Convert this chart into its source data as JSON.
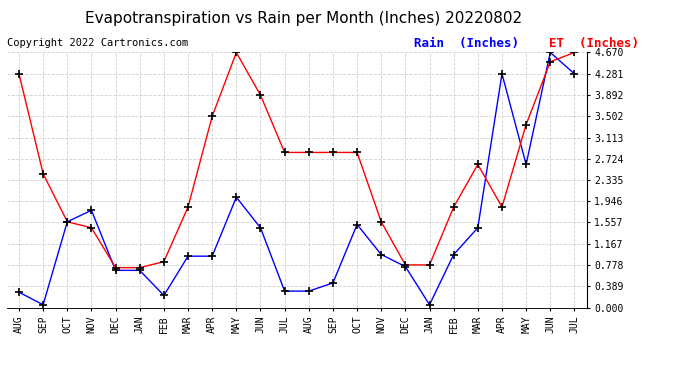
{
  "title": "Evapotranspiration vs Rain per Month (Inches) 20220802",
  "copyright": "Copyright 2022 Cartronics.com",
  "legend_rain": "Rain  (Inches)",
  "legend_et": "ET  (Inches)",
  "months": [
    "AUG",
    "SEP",
    "OCT",
    "NOV",
    "DEC",
    "JAN",
    "FEB",
    "MAR",
    "APR",
    "MAY",
    "JUN",
    "JUL",
    "AUG",
    "SEP",
    "OCT",
    "NOV",
    "DEC",
    "JAN",
    "FEB",
    "MAR",
    "APR",
    "MAY",
    "JUN",
    "JUL"
  ],
  "rain": [
    0.28,
    0.05,
    1.57,
    1.78,
    0.68,
    0.68,
    0.22,
    0.94,
    0.94,
    2.02,
    1.46,
    0.3,
    0.3,
    0.45,
    1.52,
    0.97,
    0.75,
    0.05,
    0.97,
    1.46,
    4.28,
    2.62,
    4.67,
    4.28
  ],
  "et": [
    4.28,
    2.45,
    1.57,
    1.46,
    0.73,
    0.73,
    0.84,
    1.84,
    3.5,
    4.67,
    3.89,
    2.84,
    2.84,
    2.84,
    2.84,
    1.57,
    0.78,
    0.78,
    1.84,
    2.62,
    1.84,
    3.35,
    4.5,
    4.67
  ],
  "ylim": [
    0.0,
    4.67
  ],
  "yticks": [
    0.0,
    0.389,
    0.778,
    1.167,
    1.557,
    1.946,
    2.335,
    2.724,
    3.113,
    3.502,
    3.892,
    4.281,
    4.67
  ],
  "rain_color": "blue",
  "et_color": "red",
  "marker_color": "black",
  "bg_color": "white",
  "grid_color": "#cccccc",
  "title_color": "black",
  "copyright_color": "black",
  "title_fontsize": 11,
  "copyright_fontsize": 7.5,
  "legend_fontsize": 9,
  "tick_fontsize": 7,
  "line_width": 1.0,
  "marker_size": 4
}
